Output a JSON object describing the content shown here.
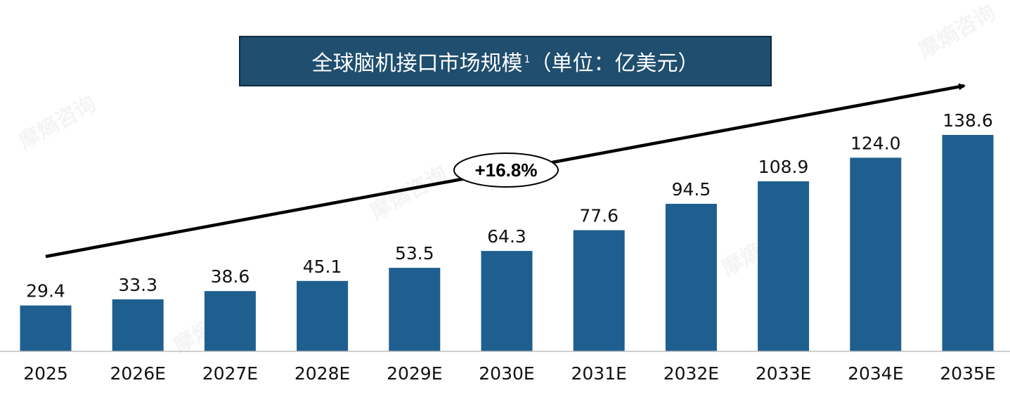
{
  "title": {
    "main": "全球脑机接口市场规模",
    "footnote": "1",
    "unit": "（单位：亿美元）"
  },
  "cagr_label": "+16.8%",
  "watermark": "摩熵咨询",
  "colors": {
    "bar": "#1f5f8f",
    "title_bg": "#1f4e6e",
    "text": "#111111"
  },
  "chart_data": {
    "type": "bar",
    "categories": [
      "2025",
      "2026E",
      "2027E",
      "2028E",
      "2029E",
      "2030E",
      "2031E",
      "2032E",
      "2033E",
      "2034E",
      "2035E"
    ],
    "values": [
      29.4,
      33.3,
      38.6,
      45.1,
      53.5,
      64.3,
      77.6,
      94.5,
      108.9,
      124.0,
      138.6
    ],
    "value_labels": [
      "29.4",
      "33.3",
      "38.6",
      "45.1",
      "53.5",
      "64.3",
      "77.6",
      "94.5",
      "108.9",
      "124.0",
      "138.6"
    ],
    "title": "全球脑机接口市场规模（单位：亿美元）",
    "annotations": [
      "+16.8%"
    ],
    "ylim": [
      0,
      138.6
    ],
    "grid": false,
    "legend": "none"
  }
}
